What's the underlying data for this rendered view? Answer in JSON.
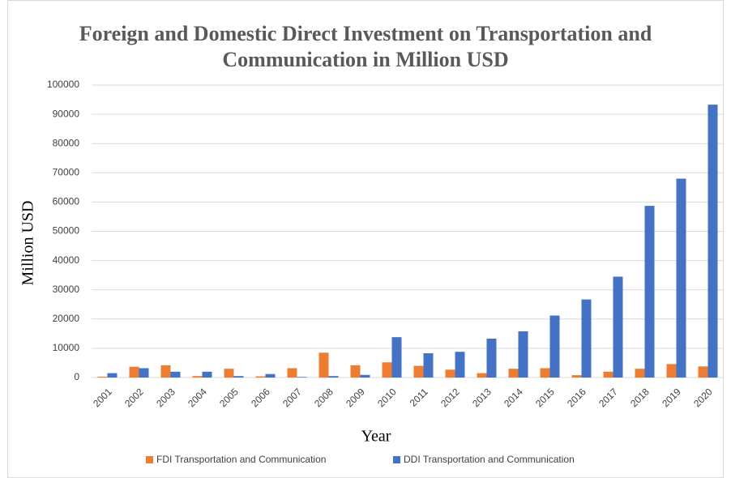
{
  "chart_data": {
    "type": "bar",
    "title": "Foreign and Domestic Direct Investment on Transportation and Communication in Million USD",
    "x_label": "Year",
    "y_label": "Million USD",
    "categories": [
      "2001",
      "2002",
      "2003",
      "2004",
      "2005",
      "2006",
      "2007",
      "2008",
      "2009",
      "2010",
      "2011",
      "2012",
      "2013",
      "2014",
      "2015",
      "2016",
      "2017",
      "2018",
      "2019",
      "2020"
    ],
    "series": [
      {
        "name": "FDI Transportation and Communication",
        "color": "#ed7d31",
        "values": [
          300,
          3700,
          4200,
          500,
          3000,
          400,
          3200,
          8500,
          4200,
          5200,
          4000,
          2700,
          1500,
          3000,
          3200,
          800,
          2000,
          3000,
          4600,
          3800
        ]
      },
      {
        "name": "DDI Transportation and Communication",
        "color": "#4472c4",
        "values": [
          1500,
          3200,
          2000,
          2000,
          500,
          1200,
          200,
          500,
          900,
          13800,
          8300,
          8800,
          13300,
          15800,
          21200,
          26700,
          34500,
          58700,
          68000,
          93300
        ]
      }
    ],
    "ylim": [
      0,
      100000
    ],
    "yticks": [
      0,
      10000,
      20000,
      30000,
      40000,
      50000,
      60000,
      70000,
      80000,
      90000,
      100000
    ],
    "grid": true,
    "legend": "bottom"
  }
}
